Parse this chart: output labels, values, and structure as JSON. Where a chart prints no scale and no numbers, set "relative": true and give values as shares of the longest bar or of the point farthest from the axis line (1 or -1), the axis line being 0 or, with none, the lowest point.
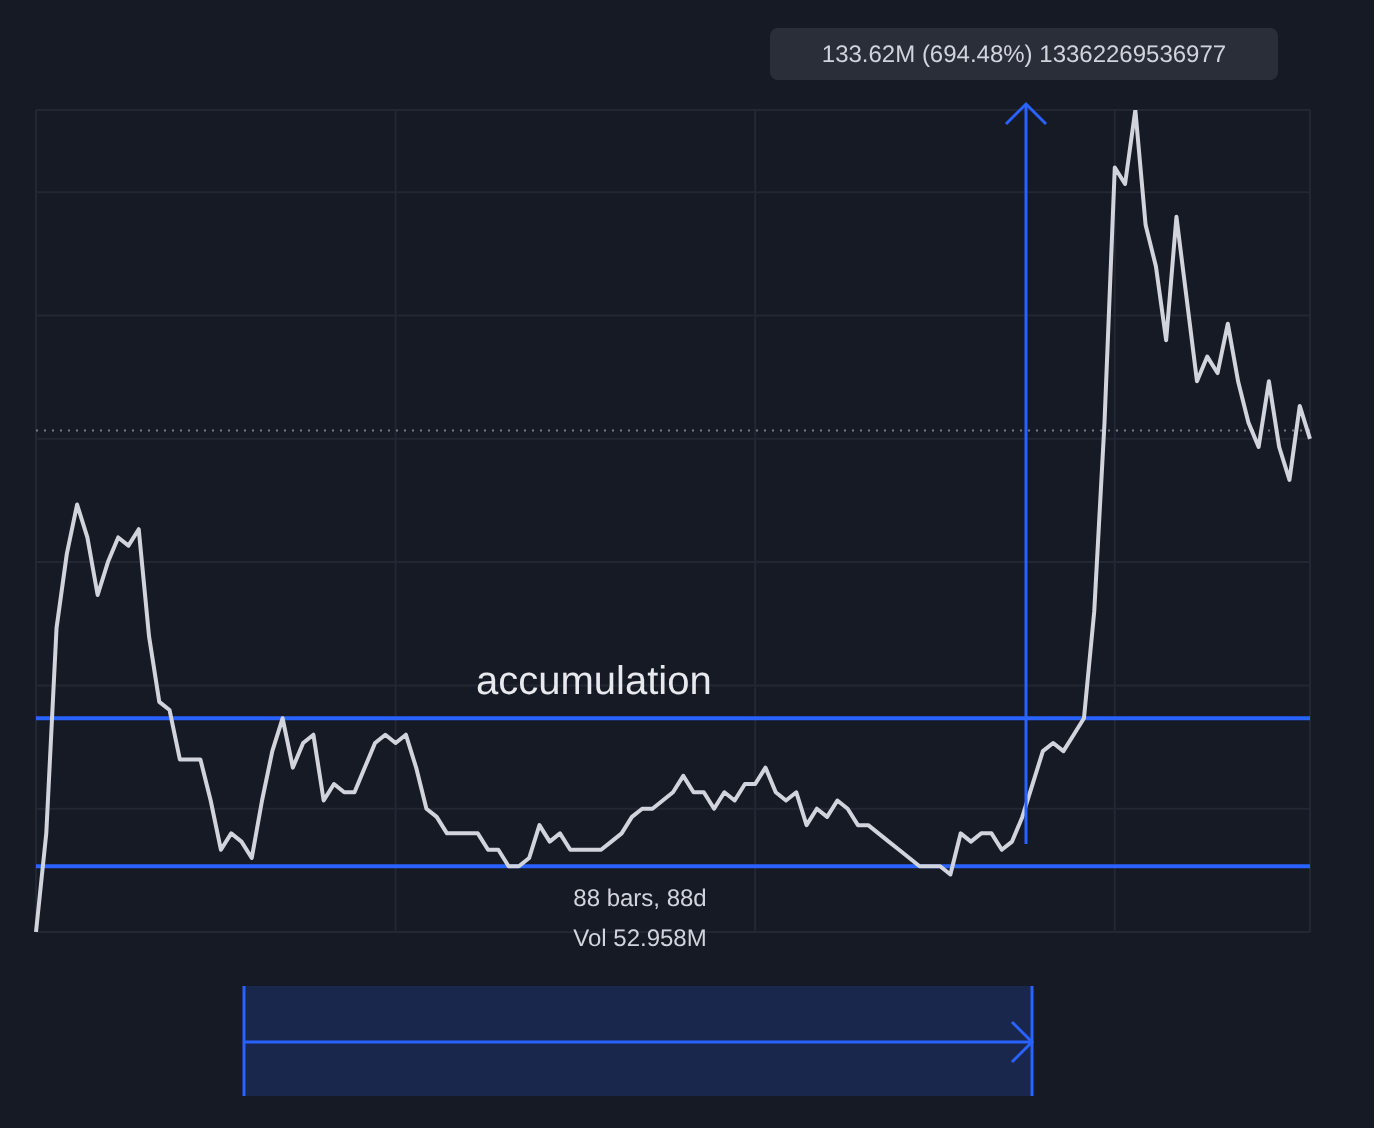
{
  "chart_data": {
    "type": "line",
    "relative": true,
    "grid": true,
    "marker": "none",
    "line_style": "solid",
    "categories": [
      null,
      null,
      null,
      null,
      null,
      null,
      null,
      null,
      null,
      null,
      null,
      null,
      null,
      null,
      null,
      null,
      null,
      null,
      null,
      null,
      null,
      null,
      null,
      null,
      null,
      null,
      null,
      null,
      null,
      null,
      null,
      null,
      null,
      null,
      null,
      null,
      null,
      null,
      null,
      null,
      null,
      null,
      null,
      null,
      null,
      null,
      null,
      null,
      null,
      null,
      null,
      null,
      null,
      null,
      null,
      null,
      null,
      null,
      null,
      null,
      null,
      null,
      null,
      null,
      null,
      null,
      null,
      null,
      null,
      null,
      null,
      null,
      null,
      null,
      null,
      null,
      null,
      null,
      null,
      null,
      null,
      null,
      null,
      null,
      null,
      null,
      null,
      null,
      null,
      null,
      null,
      null,
      null,
      null,
      null,
      null,
      null,
      null,
      null,
      null,
      null,
      null,
      null,
      null,
      null,
      null,
      null,
      null,
      null,
      null,
      null,
      null,
      null,
      null,
      null,
      null,
      null,
      null,
      null,
      null,
      null,
      null,
      null,
      null,
      null
    ],
    "series": [
      {
        "color": "#d1d4dc",
        "values": [
          0,
          0.12,
          0.37,
          0.46,
          0.52,
          0.48,
          0.41,
          0.45,
          0.48,
          0.47,
          0.49,
          0.36,
          0.28,
          0.27,
          0.21,
          0.21,
          0.21,
          0.16,
          0.1,
          0.12,
          0.11,
          0.09,
          0.16,
          0.22,
          0.26,
          0.2,
          0.23,
          0.24,
          0.16,
          0.18,
          0.17,
          0.17,
          0.2,
          0.23,
          0.24,
          0.23,
          0.24,
          0.2,
          0.15,
          0.14,
          0.12,
          0.12,
          0.12,
          0.12,
          0.1,
          0.1,
          0.08,
          0.08,
          0.09,
          0.13,
          0.11,
          0.12,
          0.1,
          0.1,
          0.1,
          0.1,
          0.11,
          0.12,
          0.14,
          0.15,
          0.15,
          0.16,
          0.17,
          0.19,
          0.17,
          0.17,
          0.15,
          0.17,
          0.16,
          0.18,
          0.18,
          0.2,
          0.17,
          0.16,
          0.17,
          0.13,
          0.15,
          0.14,
          0.16,
          0.15,
          0.13,
          0.13,
          0.12,
          0.11,
          0.1,
          0.09,
          0.08,
          0.08,
          0.08,
          0.07,
          0.12,
          0.11,
          0.12,
          0.12,
          0.1,
          0.11,
          0.14,
          0.18,
          0.22,
          0.23,
          0.22,
          0.24,
          0.26,
          0.39,
          0.62,
          0.93,
          0.91,
          1,
          0.86,
          0.81,
          0.72,
          0.87,
          0.77,
          0.67,
          0.7,
          0.68,
          0.74,
          0.67,
          0.62,
          0.59,
          0.67,
          0.59,
          0.55,
          0.64,
          0.6
        ]
      }
    ],
    "ref_lines": [
      {
        "axis": "y",
        "value": 0.26,
        "color": "#2962ff",
        "line_style": "solid"
      },
      {
        "axis": "y",
        "value": 0.08,
        "color": "#2962ff",
        "line_style": "solid"
      },
      {
        "axis": "y",
        "value": 0.61,
        "color": "#787b86",
        "line_style": "dotted"
      }
    ],
    "annotations": [
      "133.62M (694.48%) 13362269536977",
      "accumulation",
      "88 bars, 88d",
      "Vol 52.958M"
    ]
  }
}
